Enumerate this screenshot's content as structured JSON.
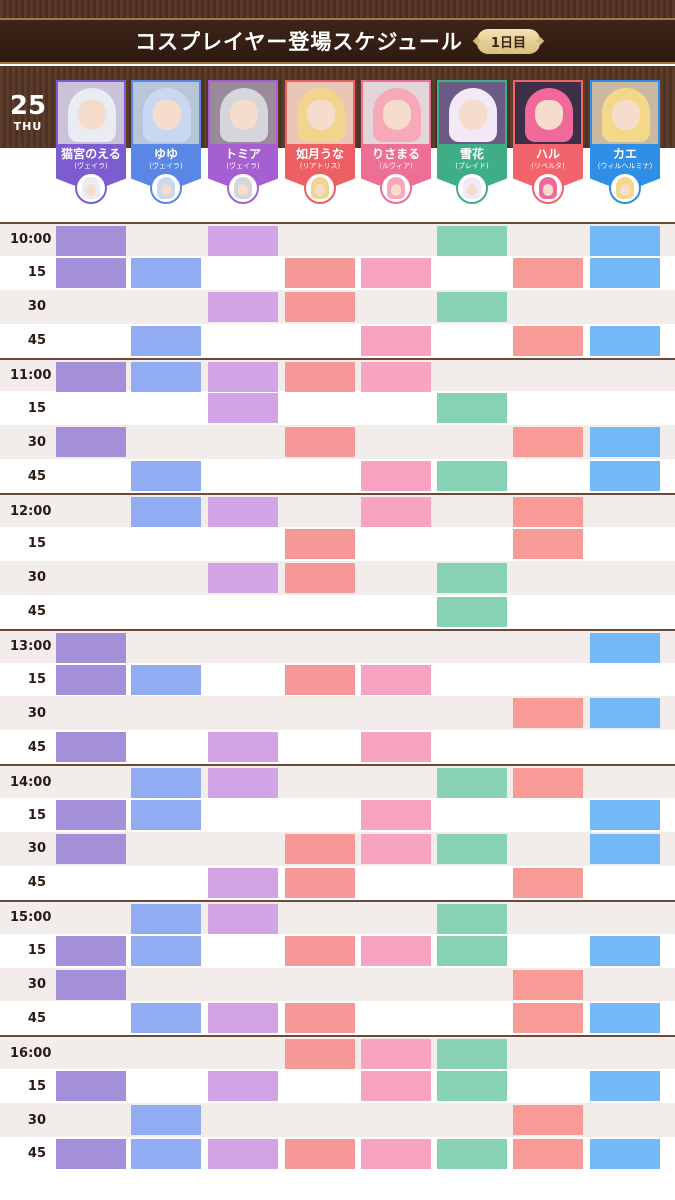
{
  "header": {
    "title": "コスプレイヤー登場スケジュール",
    "day_badge": "1日目"
  },
  "date": {
    "day": "25",
    "weekday": "THU"
  },
  "cast": [
    {
      "name": "猫宮のえる",
      "role": "(ヴェイラ)",
      "color": "#7c5ccf",
      "cell_color": "#a48fd9",
      "hair": "#e9ecf2",
      "bg": "#c9c2d8"
    },
    {
      "name": "ゆゆ",
      "role": "(ヴェイラ)",
      "color": "#5a86e6",
      "cell_color": "#92acf2",
      "hair": "#c9d8f0",
      "bg": "#b9c6da"
    },
    {
      "name": "トミア",
      "role": "(ヴェイラ)",
      "color": "#a55fd0",
      "cell_color": "#d2a4e6",
      "hair": "#d4d6db",
      "bg": "#9a8a9a"
    },
    {
      "name": "如月うな",
      "role": "(リアトリス)",
      "color": "#ee5f64",
      "cell_color": "#f79898",
      "hair": "#f3d48c",
      "bg": "#e8c6b8"
    },
    {
      "name": "りさまる",
      "role": "(ルヴィア)",
      "color": "#ee6f94",
      "cell_color": "#f6a4c2",
      "hair": "#f7a9b8",
      "bg": "#e2d6da"
    },
    {
      "name": "雪花",
      "role": "(ブレイド)",
      "color": "#3fae86",
      "cell_color": "#86d2b2",
      "hair": "#f2e8f6",
      "bg": "#6a5b86"
    },
    {
      "name": "ハル",
      "role": "(リベルタ)",
      "color": "#f2636b",
      "cell_color": "#f89a96",
      "hair": "#f0699a",
      "bg": "#3c3046"
    },
    {
      "name": "カエ",
      "role": "(ウィルヘルミナ)",
      "color": "#2f8fe6",
      "cell_color": "#74b8f8",
      "hair": "#f4d88a",
      "bg": "#c9b8a2"
    }
  ],
  "times": [
    "10:00",
    "15",
    "30",
    "45",
    "11:00",
    "15",
    "30",
    "45",
    "12:00",
    "15",
    "30",
    "45",
    "13:00",
    "15",
    "30",
    "45",
    "14:00",
    "15",
    "30",
    "45",
    "15:00",
    "15",
    "30",
    "45",
    "16:00",
    "15",
    "30",
    "45"
  ],
  "schedule": [
    [
      1,
      0,
      1,
      0,
      0,
      1,
      0,
      1
    ],
    [
      1,
      1,
      0,
      1,
      1,
      0,
      1,
      1
    ],
    [
      0,
      0,
      1,
      1,
      0,
      1,
      0,
      0
    ],
    [
      0,
      1,
      0,
      0,
      1,
      0,
      1,
      1
    ],
    [
      1,
      1,
      1,
      1,
      1,
      0,
      0,
      0
    ],
    [
      0,
      0,
      1,
      0,
      0,
      1,
      0,
      0
    ],
    [
      1,
      0,
      0,
      1,
      0,
      0,
      1,
      1
    ],
    [
      0,
      1,
      0,
      0,
      1,
      1,
      0,
      1
    ],
    [
      0,
      1,
      1,
      0,
      1,
      0,
      1,
      0
    ],
    [
      0,
      0,
      0,
      1,
      0,
      0,
      1,
      0
    ],
    [
      0,
      0,
      1,
      1,
      0,
      1,
      0,
      0
    ],
    [
      0,
      0,
      0,
      0,
      0,
      1,
      0,
      0
    ],
    [
      1,
      0,
      0,
      0,
      0,
      0,
      0,
      1
    ],
    [
      1,
      1,
      0,
      1,
      1,
      0,
      0,
      0
    ],
    [
      0,
      0,
      0,
      0,
      0,
      0,
      1,
      1
    ],
    [
      1,
      0,
      1,
      0,
      1,
      0,
      0,
      0
    ],
    [
      0,
      1,
      1,
      0,
      0,
      1,
      1,
      0
    ],
    [
      1,
      1,
      0,
      0,
      1,
      0,
      0,
      1
    ],
    [
      1,
      0,
      0,
      1,
      1,
      1,
      0,
      1
    ],
    [
      0,
      0,
      1,
      1,
      0,
      0,
      1,
      0
    ],
    [
      0,
      1,
      1,
      0,
      0,
      1,
      0,
      0
    ],
    [
      1,
      1,
      0,
      1,
      1,
      1,
      0,
      1
    ],
    [
      1,
      0,
      0,
      0,
      0,
      0,
      1,
      0
    ],
    [
      0,
      1,
      1,
      1,
      0,
      0,
      1,
      1
    ],
    [
      0,
      0,
      0,
      1,
      1,
      1,
      0,
      0
    ],
    [
      1,
      0,
      1,
      0,
      1,
      1,
      0,
      1
    ],
    [
      0,
      1,
      0,
      0,
      0,
      0,
      1,
      0
    ],
    [
      1,
      1,
      1,
      1,
      1,
      1,
      1,
      1
    ]
  ]
}
